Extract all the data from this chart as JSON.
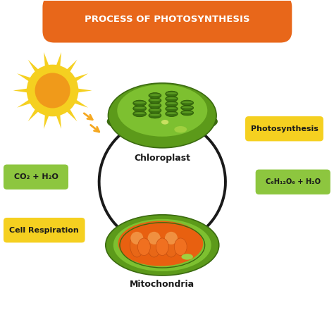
{
  "title": "PROCESS OF PHOTOSYNTHESIS",
  "title_bg": "#E8671A",
  "title_color": "#FFFFFF",
  "bg_color": "#FFFFFF",
  "label_co2": "CO₂ + H₂O",
  "label_c6": "C₆H₁₂O₆ + H₂O",
  "label_photosynthesis": "Photosynthesis",
  "label_cell_resp": "Cell Respiration",
  "label_chloroplast": "Chloroplast",
  "label_mitochondria": "Mitochondria",
  "label_bg_green": "#8DC63F",
  "label_bg_yellow": "#F5D020",
  "label_text_color": "#1A1A1A",
  "arrow_color": "#1A1A1A",
  "sun_ray_color": "#F5D020",
  "sun_inner_color": "#F09A1A"
}
